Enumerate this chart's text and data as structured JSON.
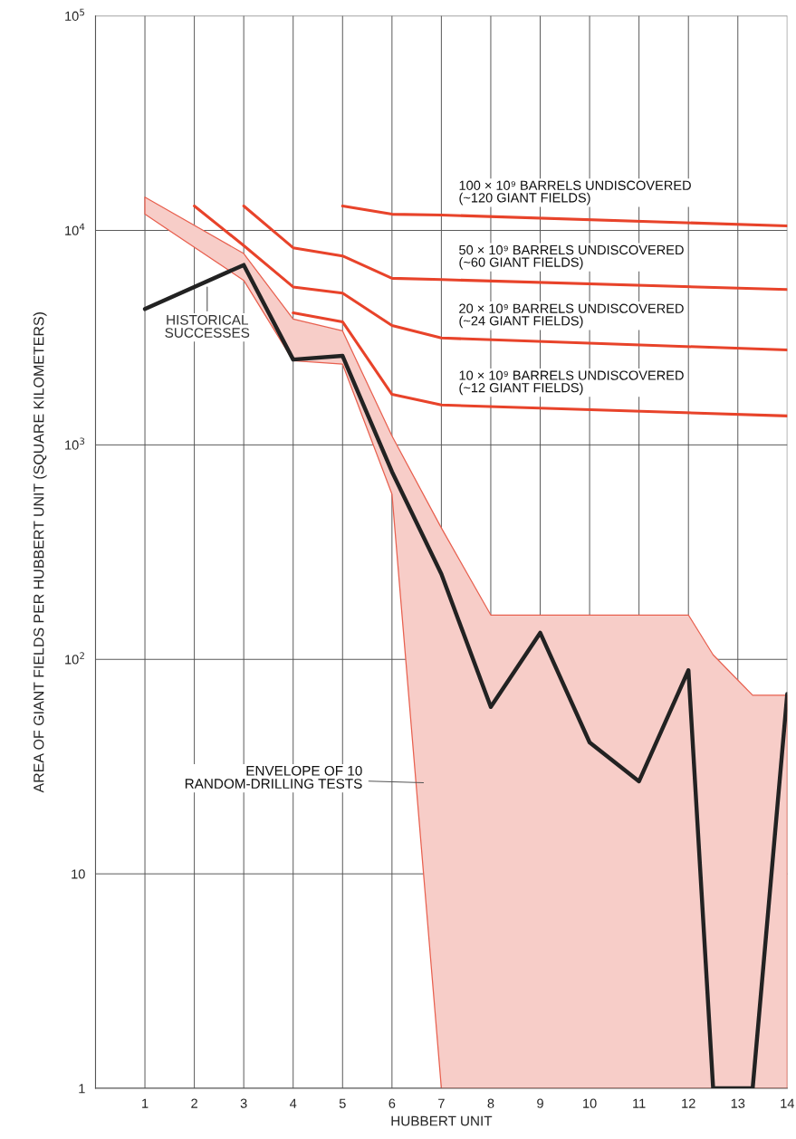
{
  "chart_data": {
    "type": "line",
    "xlabel": "HUBBERT UNIT",
    "ylabel": "AREA OF GIANT FIELDS PER HUBBERT UNIT (SQUARE KILOMETERS)",
    "xlim": [
      0,
      14
    ],
    "xticks": [
      1,
      2,
      3,
      4,
      5,
      6,
      7,
      8,
      9,
      10,
      11,
      12,
      13,
      14
    ],
    "ylim": [
      1,
      100000
    ],
    "log": true,
    "yticks": [
      1,
      10,
      {
        "value": 100,
        "label": "10$^{2}$"
      },
      {
        "value": 1000,
        "label": "10$^{3}$"
      },
      {
        "value": 10000,
        "label": "10$^{4}$"
      },
      {
        "value": 100000,
        "label": "10$^{5}$"
      }
    ],
    "grid": true,
    "series": [
      {
        "name": "100 × 10⁹ BARRELS UNDISCOVERED\n(~120 GIANT FIELDS)",
        "color": "#e8432a",
        "x": [
          5,
          6,
          7,
          14
        ],
        "values": [
          13000,
          11900,
          11800,
          10500
        ]
      },
      {
        "name": "50 × 10⁹ BARRELS UNDISCOVERED\n(~60 GIANT FIELDS)",
        "color": "#e8432a",
        "x": [
          3,
          4,
          5,
          6,
          7,
          14
        ],
        "values": [
          13000,
          8300,
          7600,
          5980,
          5900,
          5300
        ]
      },
      {
        "name": "20 × 10⁹ BARRELS UNDISCOVERED\n(~24 GIANT FIELDS)",
        "color": "#e8432a",
        "x": [
          2,
          3,
          4,
          5,
          6,
          7,
          14
        ],
        "values": [
          13000,
          8500,
          5450,
          5100,
          3600,
          3150,
          2770
        ]
      },
      {
        "name": "10 × 10⁹ BARRELS UNDISCOVERED\n(~12 GIANT FIELDS)",
        "color": "#e8432a",
        "x": [
          4,
          5,
          6,
          7,
          14
        ],
        "values": [
          4130,
          3750,
          1720,
          1535,
          1365
        ]
      },
      {
        "color": "#222222",
        "x": [
          1,
          3,
          4,
          5,
          6,
          7,
          8,
          9,
          10,
          11,
          12,
          12.5,
          13.3,
          14
        ],
        "values": [
          4300,
          6900,
          2500,
          2600,
          750,
          250,
          60,
          133,
          41,
          27,
          89,
          1,
          1,
          69
        ],
        "lower": [
          11900,
          5850,
          2470,
          2380,
          590,
          1,
          1,
          1,
          1,
          1,
          1,
          1,
          1,
          1
        ],
        "upper": [
          14300,
          7800,
          3860,
          3400,
          1100,
          410,
          161,
          161,
          161,
          161,
          161,
          105,
          68,
          68
        ]
      }
    ],
    "annotations": [
      {
        "text": "HISTORICAL\nSUCCESSES",
        "x": 2.26,
        "y": 5450
      },
      "ENVELOPE OF 10\nRANDOM-DRILLING TESTS"
    ]
  }
}
